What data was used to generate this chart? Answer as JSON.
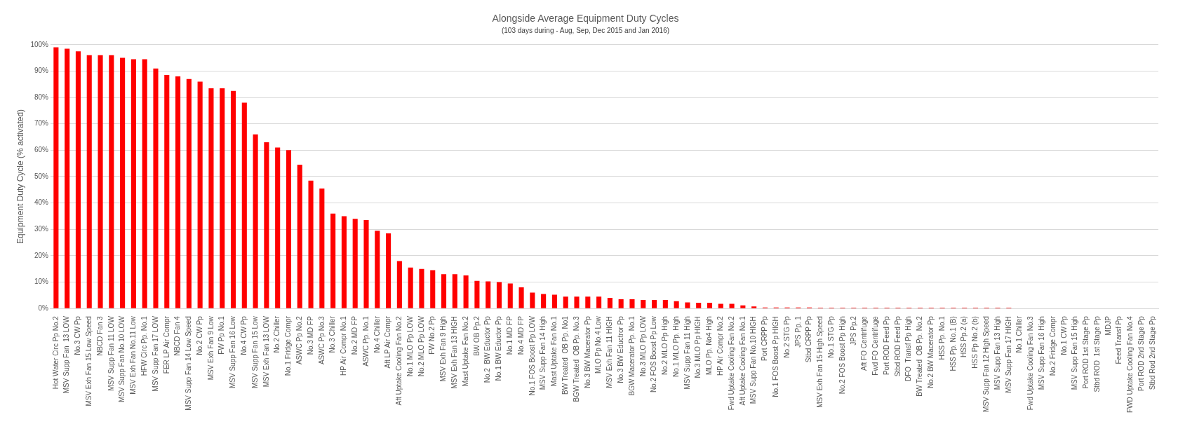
{
  "chart_data": {
    "type": "bar",
    "title": "Alongside Average Equipment Duty Cycles",
    "subtitle": "(103 days during - Aug, Sep, Dec 2015 and Jan 2016)",
    "ylabel": "Equipment Duty Cycle (% activated)",
    "categories": [
      "Hot Water Circ Pp No.2",
      "MSV Supp Fan  13 LOW",
      "No.3 CW Pp",
      "MSV Exh Fan 15 Low Speed",
      "NBCD Fan 3",
      "MSV Supp Fan 11 LOW",
      "MSV Supp Fan No.10 LOW",
      "MSV Exh Fan No.11 Low",
      "HFW Circ Pp. No.1",
      "MSV Supp Fan 17 LOW",
      "FER LP Air Compr",
      "NBCD Fan 4",
      "MSV Supp Fan 14 Low Speed",
      "No.2 CW Pp",
      "MSV Exh Fan 9 Low",
      "FW Pp No.1",
      "MSV Supp Fan 16 Low",
      "No.4 CW Pp",
      "MSV Supp Fan 15 Low",
      "MSV Exh Fan 13 LOW",
      "No.2 Chiller",
      "No.1 Fridge Compr",
      "ASWC Pp No.2",
      "No.3 MD FP",
      "ASWC Pp No.3",
      "No.3 Chiller",
      "HP Air Compr No.1",
      "No.2 MD FP",
      "ASWC Pp. No.1",
      "No.4 Chiller",
      "Aft LP Air Compr",
      "Aft Uptake Cooling Fan No.2",
      "No.1 MLO Pp LOW",
      "No.2 MLO Pp LOW",
      "FW No.2 Pp",
      "MSV Exh Fan 9 High",
      "MSV Exh Fan 13 HIGH",
      "Mast Uptake Fan No.2",
      "BW OB Pp.2",
      "No.2  BW Eductor Pp",
      "No.1 BW Eductor Pp",
      "No.1 MD FP",
      "No.4 MD FP",
      "No.1 FOS Boost Pp LOW",
      "MSV Supp Fan 14 High",
      "Mast Uptake Fan No.1",
      "BW Treated  OB Pp. No1",
      "BGW Treated  OB Pp. No.3",
      "No.3 BW Macerator Pp",
      "MLO Pp No.4 Low",
      "MSV Exh Fan 11 HIGH",
      "No.3 BW Eductror Pp",
      "BGW Macerator Pp. No.1",
      "No.3 MLO Pp LOW",
      "No.2 FOS Boost Pp Low",
      "No.2 MLO Pp High",
      "No.1 MLO Pp. High",
      "MSV Supp Fan 11 High",
      "No.3 MLO Pp HIGH",
      "MLO Pp. No4 High",
      "HP Air Compr No.2",
      "Fwd Uptake Cooling Fan No.2",
      "Aft Uptake Cooling Fan No.1",
      "MSV Supp Fan No.10 HIGH",
      "Port CRPP Pp",
      "No.1 FOS Boost Pp HIGH",
      "No.2 STG Pp",
      "JPS Pp. 1",
      "Stbd CRPP Pp",
      "MSV Exh Fan 15 High Speed",
      "No.1 STG Pp",
      "No.2 FOS Boost Pp High",
      "JPS Pp.2",
      "Aft FO Centrifuge",
      "Fwd FO Centrifuge",
      "Port ROD Feed Pp",
      "Stbd ROD Feed Pp",
      "DFO  Transf Pp High",
      "BW Treated  OB Pp. No.2",
      "No.2 BW Macerator Pp",
      "HSS Pp. No.1",
      "HSS Pp. No.1 (B)",
      "HSS Pp.2 (a)",
      "HSS Pp No.2 (b)",
      "MSV Supp Fan 12 High Speed",
      "MSV Supp Fan 13 High",
      "MSV Supp Fan 17 HIGH",
      "No.1 Chiller",
      "Fwd Uptake Cooling Fan No.3",
      "MSV Supp Fan 16 High",
      "No.2 Fridge Compr",
      "No.1 CW Pp",
      "MSV Supp Fan 15 High",
      "Port ROD 1st Stage Pp",
      "Stbd ROD  1st Stage Pp",
      "MDJP",
      "Feed Transf Pp",
      "FWD Uptake Cooling Fan No.4",
      "Port ROD 2nd Stage Pp",
      "Stbd Rod 2nd Stage Pp"
    ],
    "values": [
      99,
      98.5,
      97.5,
      96,
      96,
      96,
      95,
      94.5,
      94.5,
      91,
      88.5,
      88,
      87,
      86,
      83.5,
      83.5,
      82.5,
      78,
      66,
      63,
      61,
      60,
      54.5,
      48.5,
      45.5,
      36,
      35,
      34,
      33.5,
      29.5,
      28.5,
      18,
      15.5,
      15,
      14.5,
      13,
      13,
      12.5,
      10.5,
      10.3,
      10,
      9.5,
      8,
      6,
      5.5,
      5.2,
      4.5,
      4.5,
      4.5,
      4.5,
      4,
      3.5,
      3.5,
      3.2,
      3.2,
      3.2,
      2.8,
      2.3,
      2.2,
      2.2,
      1.8,
      1.8,
      1.2,
      0.8,
      0.4,
      0.4,
      0.4,
      0.4,
      0.4,
      0.3,
      0.3,
      0.3,
      0.3,
      0.3,
      0.3,
      0.3,
      0.3,
      0.3,
      0.3,
      0.3,
      0.3,
      0.3,
      0.3,
      0.3,
      0.3,
      0.3,
      0.3,
      0,
      0,
      0,
      0,
      0,
      0,
      0,
      0,
      0,
      0,
      0,
      0,
      0
    ],
    "color": "#ff0000",
    "ylim": [
      0,
      100
    ],
    "yticks": [
      {
        "value": 0,
        "label": "0%"
      },
      {
        "value": 10,
        "label": "10%"
      },
      {
        "value": 20,
        "label": "20%"
      },
      {
        "value": 30,
        "label": "30%"
      },
      {
        "value": 40,
        "label": "40%"
      },
      {
        "value": 50,
        "label": "50%"
      },
      {
        "value": 60,
        "label": "60%"
      },
      {
        "value": 70,
        "label": "70%"
      },
      {
        "value": 80,
        "label": "80%"
      },
      {
        "value": 90,
        "label": "90%"
      },
      {
        "value": 100,
        "label": "100%"
      }
    ],
    "grid": "y",
    "legend": false
  }
}
